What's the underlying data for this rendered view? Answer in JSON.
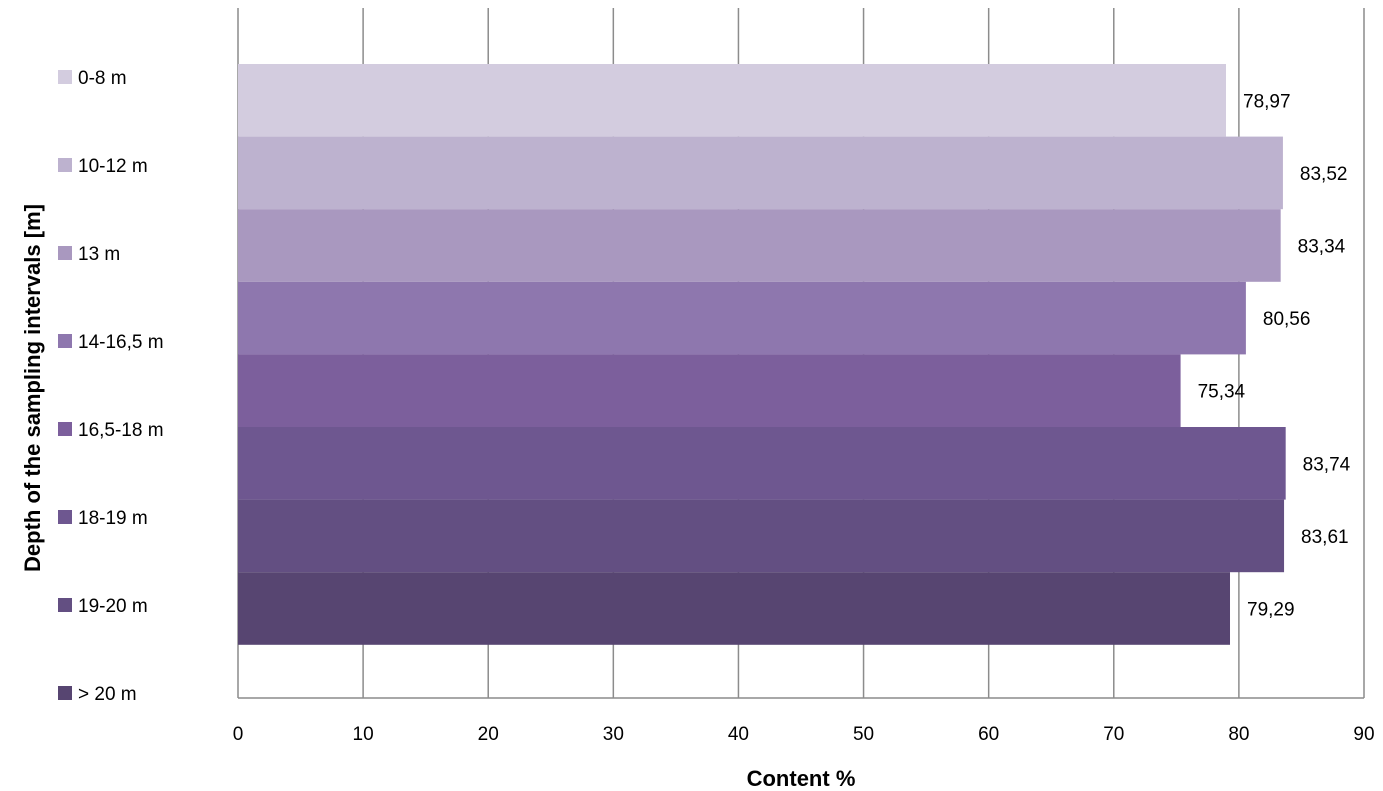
{
  "chart_data": {
    "type": "bar",
    "orientation": "horizontal",
    "xlabel": "Content %",
    "ylabel": "Depth of the sampling intervals [m]",
    "xlim": [
      0,
      90
    ],
    "x_ticks": [
      "0",
      "10",
      "20",
      "30",
      "40",
      "50",
      "60",
      "70",
      "80",
      "90"
    ],
    "grid": true,
    "legend_position": "left",
    "series": [
      {
        "name": "0-8 m",
        "value": 78.97,
        "label": "78,97",
        "color": "#d3ccdf"
      },
      {
        "name": "10-12 m",
        "value": 83.52,
        "label": "83,52",
        "color": "#bdb2cf"
      },
      {
        "name": "13 m",
        "value": 83.34,
        "label": "83,34",
        "color": "#a998bf"
      },
      {
        "name": "14-16,5 m",
        "value": 80.56,
        "label": "80,56",
        "color": "#8e77ae"
      },
      {
        "name": "16,5-18 m",
        "value": 75.34,
        "label": "75,34",
        "color": "#7c5f9c"
      },
      {
        "name": "18-19 m",
        "value": 83.74,
        "label": "83,74",
        "color": "#6e5790"
      },
      {
        "name": "19-20 m",
        "value": 83.61,
        "label": "83,61",
        "color": "#634f82"
      },
      {
        "name": "> 20 m",
        "value": 79.29,
        "label": "79,29",
        "color": "#574571"
      }
    ]
  }
}
